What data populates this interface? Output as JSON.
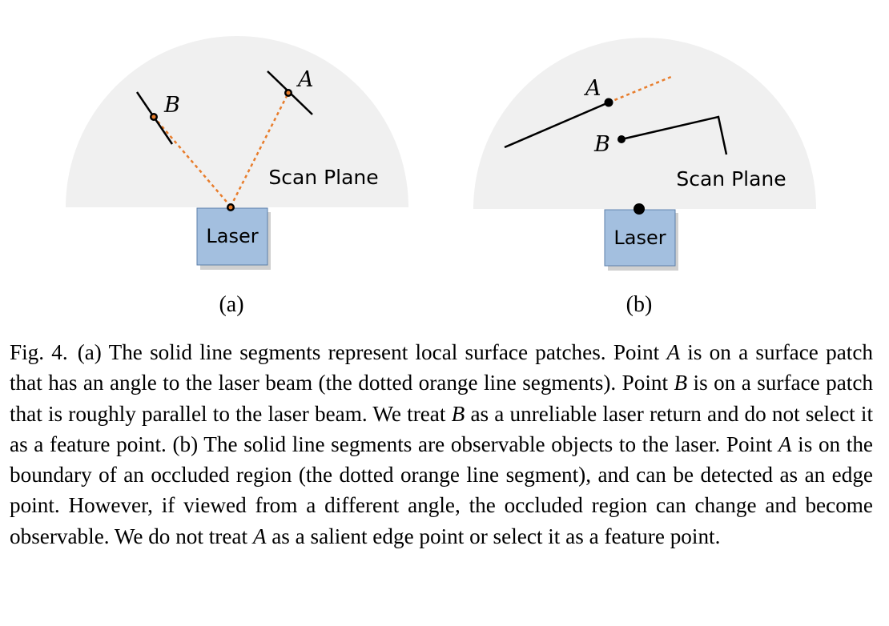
{
  "panel_a": {
    "region_label": "Scan Plane",
    "sensor_label": "Laser",
    "point_a_label": "A",
    "point_b_label": "B",
    "sublabel": "(a)"
  },
  "panel_b": {
    "region_label": "Scan Plane",
    "sensor_label": "Laser",
    "point_a_label": "A",
    "point_b_label": "B",
    "sublabel": "(b)"
  },
  "colors": {
    "scan_plane_fill": "#f0f0f0",
    "laser_fill": "#a3bfdf",
    "laser_stroke": "#5c7fa9",
    "beam": "#e87d2c"
  },
  "caption": {
    "label": "Fig. 4.",
    "p1": "(a) The solid line segments represent local surface patches. Point ",
    "A1": "A",
    "p2": " is on a surface patch that has an angle to the laser beam (the dotted orange line segments). Point ",
    "B1": "B",
    "p3": " is on a surface patch that is roughly parallel to the laser beam. We treat ",
    "B2": "B",
    "p4": " as a unreliable laser return and do not select it as a feature point. (b) The solid line segments are observable objects to the laser. Point ",
    "A2": "A",
    "p5": " is on the boundary of an occluded region (the dotted orange line segment), and can be detected as an edge point. However, if viewed from a different angle, the occluded region can change and become observable. We do not treat ",
    "A3": "A",
    "p6": " as a salient edge point or select it as a feature point."
  }
}
